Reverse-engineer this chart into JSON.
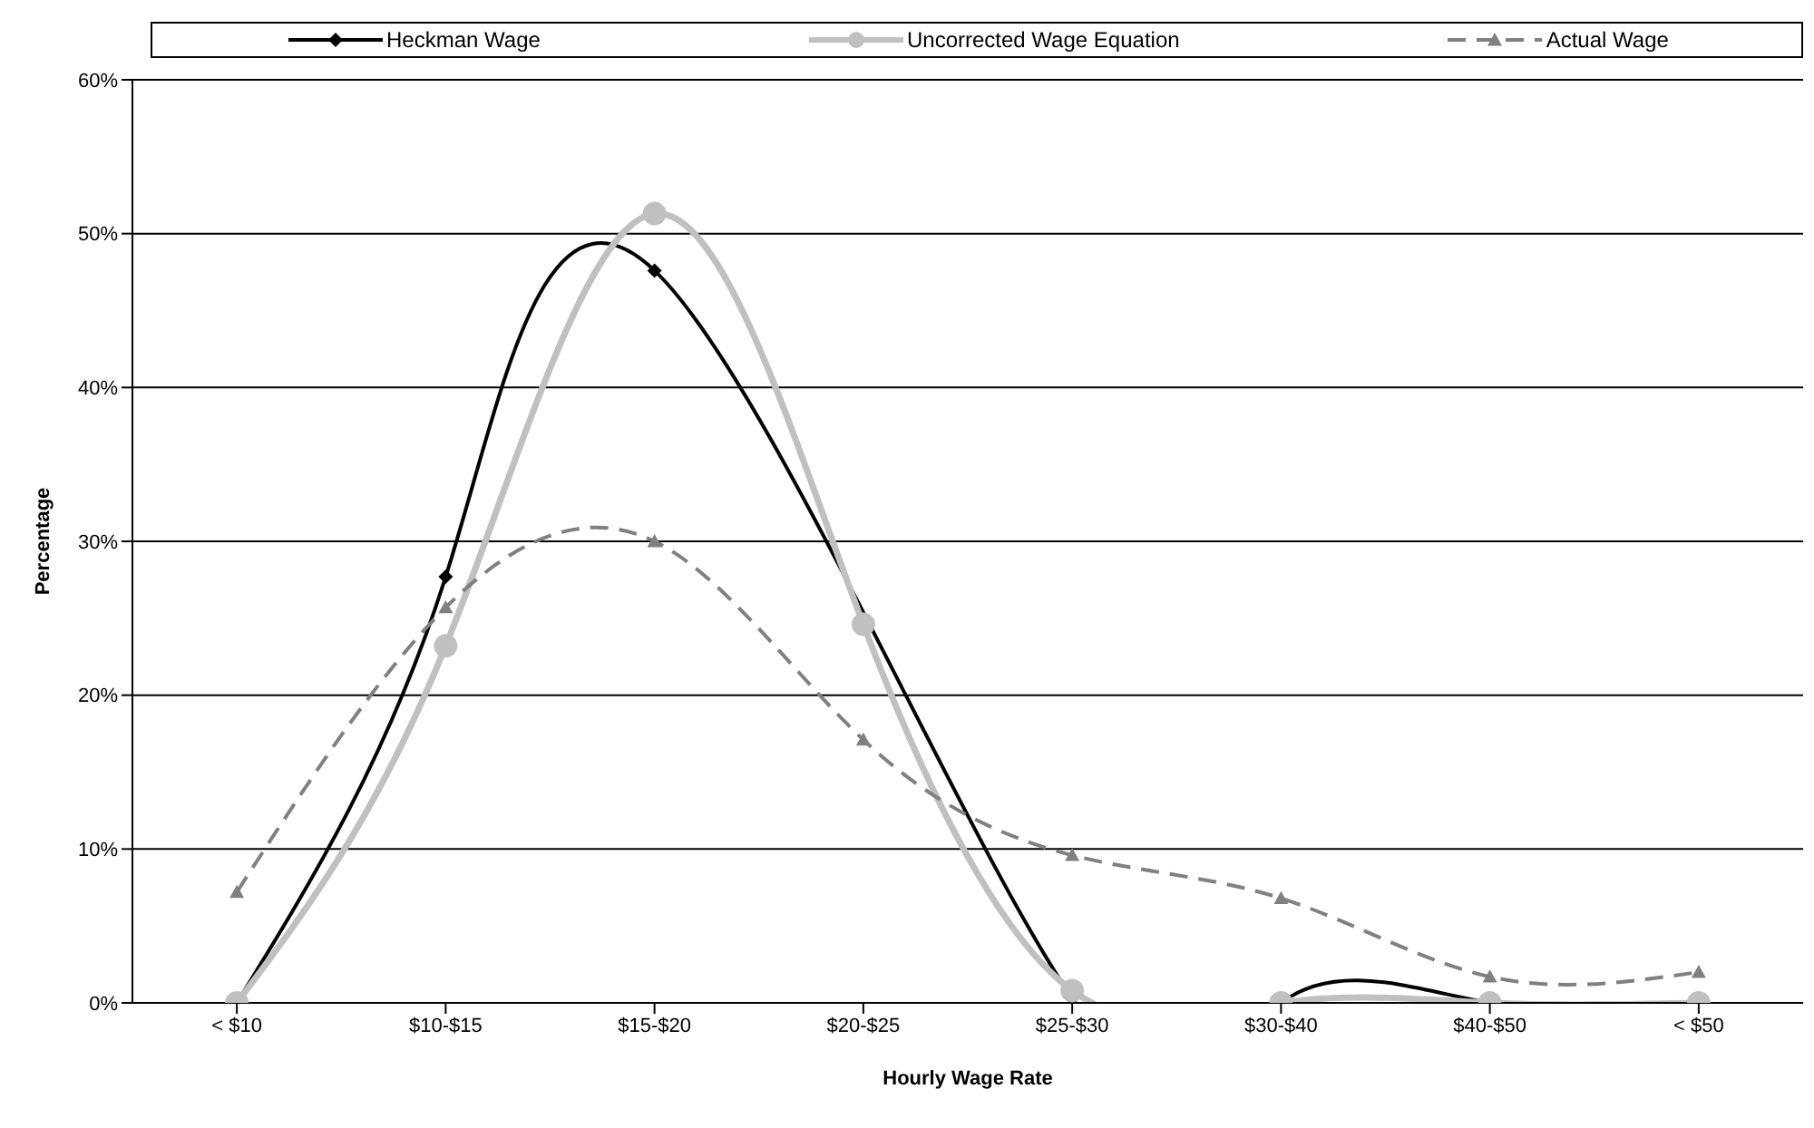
{
  "chart_data": {
    "type": "line",
    "xlabel": "Hourly Wage Rate",
    "ylabel": "Percentage",
    "categories": [
      "< $10",
      "$10-$15",
      "$15-$20",
      "$20-$25",
      "$25-$30",
      "$30-$40",
      "$40-$50",
      "< $50"
    ],
    "series": [
      {
        "name": "Heckman Wage",
        "color": "#000000",
        "marker": "diamond",
        "line_style": "solid",
        "values": [
          0,
          27.7,
          47.6,
          null,
          0.3,
          0,
          0,
          0
        ]
      },
      {
        "name": "Uncorrected Wage Equation",
        "color": "#c0c0c0",
        "marker": "circle",
        "line_style": "solid",
        "values": [
          0,
          23.2,
          51.3,
          24.6,
          0.8,
          0,
          0,
          0
        ]
      },
      {
        "name": "Actual Wage",
        "color": "#808080",
        "marker": "triangle",
        "line_style": "dashed",
        "values": [
          7.2,
          25.7,
          30,
          17.1,
          9.6,
          6.8,
          1.7,
          2
        ]
      }
    ],
    "ylim": [
      0,
      60
    ],
    "yticks": [
      {
        "value": 0,
        "label": "0%"
      },
      {
        "value": 10,
        "label": "10%"
      },
      {
        "value": 20,
        "label": "20%"
      },
      {
        "value": 30,
        "label": "30%"
      },
      {
        "value": 40,
        "label": "40%"
      },
      {
        "value": 50,
        "label": "50%"
      },
      {
        "value": 60,
        "label": "60%"
      }
    ],
    "grid": "y",
    "legend": "top"
  }
}
